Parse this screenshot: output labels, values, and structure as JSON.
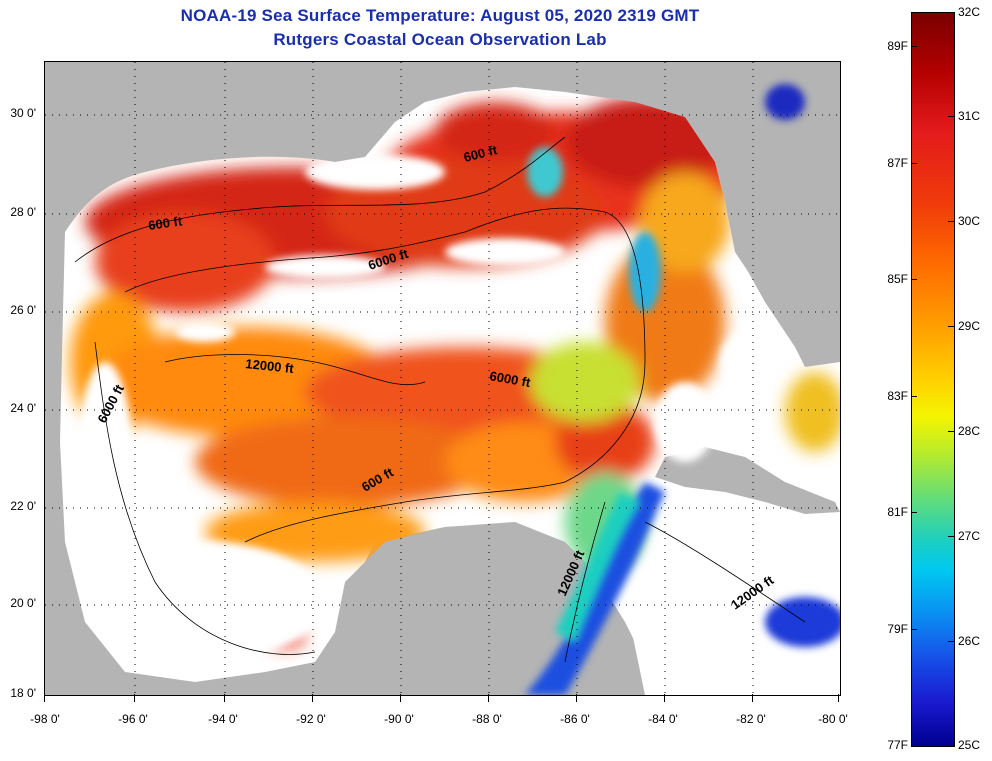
{
  "title": {
    "line1": "NOAA-19 Sea Surface Temperature:  August 05, 2020 2319 GMT",
    "line2": "Rutgers Coastal Ocean Observation Lab"
  },
  "map": {
    "lat_ticks": [
      "30 0'",
      "28 0'",
      "26 0'",
      "24 0'",
      "22 0'",
      "20 0'",
      "18 0'"
    ],
    "lon_ticks": [
      "-98 0'",
      "-96 0'",
      "-94 0'",
      "-92 0'",
      "-90 0'",
      "-88 0'",
      "-86 0'",
      "-84 0'",
      "-82 0'",
      "-80 0'"
    ],
    "contour_labels": [
      "600 ft",
      "600 ft",
      "6000 ft",
      "12000 ft",
      "6000 ft",
      "6000 ft",
      "600 ft",
      "12000 ft",
      "12000 ft"
    ],
    "colors": {
      "land": "#b4b4b4",
      "cloud": "#ffffff"
    }
  },
  "colorbar": {
    "fahrenheit": [
      "89F",
      "87F",
      "85F",
      "83F",
      "81F",
      "79F",
      "77F"
    ],
    "celsius": [
      "32C",
      "31C",
      "30C",
      "29C",
      "28C",
      "27C",
      "26C",
      "25C"
    ]
  }
}
